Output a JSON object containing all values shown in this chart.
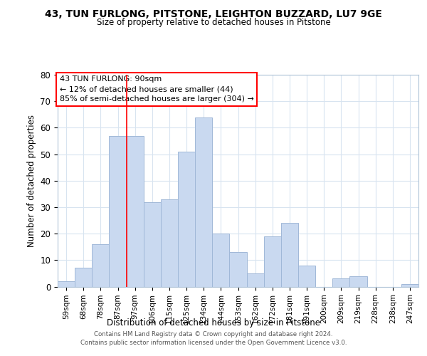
{
  "title": "43, TUN FURLONG, PITSTONE, LEIGHTON BUZZARD, LU7 9GE",
  "subtitle": "Size of property relative to detached houses in Pitstone",
  "xlabel": "Distribution of detached houses by size in Pitstone",
  "ylabel": "Number of detached properties",
  "bar_labels": [
    "59sqm",
    "68sqm",
    "78sqm",
    "87sqm",
    "97sqm",
    "106sqm",
    "115sqm",
    "125sqm",
    "134sqm",
    "144sqm",
    "153sqm",
    "162sqm",
    "172sqm",
    "181sqm",
    "191sqm",
    "200sqm",
    "209sqm",
    "219sqm",
    "228sqm",
    "238sqm",
    "247sqm"
  ],
  "bar_values": [
    2,
    7,
    16,
    57,
    57,
    32,
    33,
    51,
    64,
    20,
    13,
    5,
    19,
    24,
    8,
    0,
    3,
    4,
    0,
    0,
    1
  ],
  "bar_color": "#c9d9f0",
  "bar_edge_color": "#a0b8d8",
  "highlight_line_color": "red",
  "annotation_line1": "43 TUN FURLONG: 90sqm",
  "annotation_line2": "← 12% of detached houses are smaller (44)",
  "annotation_line3": "85% of semi-detached houses are larger (304) →",
  "ylim": [
    0,
    80
  ],
  "yticks": [
    0,
    10,
    20,
    30,
    40,
    50,
    60,
    70,
    80
  ],
  "footer_line1": "Contains HM Land Registry data © Crown copyright and database right 2024.",
  "footer_line2": "Contains public sector information licensed under the Open Government Licence v3.0.",
  "background_color": "#ffffff",
  "grid_color": "#d8e4f0"
}
